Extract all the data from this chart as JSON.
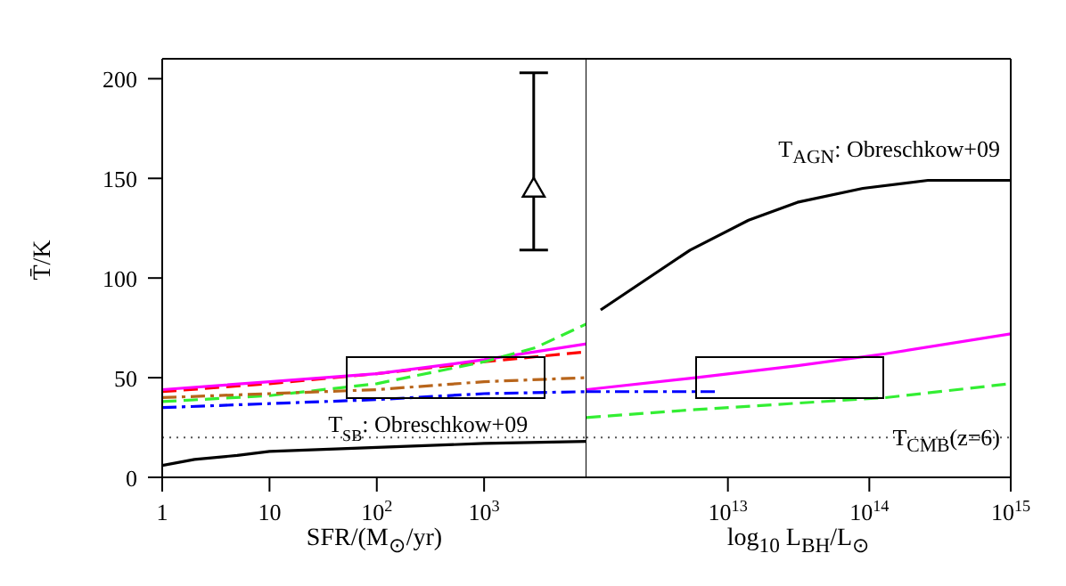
{
  "chart_data": [
    {
      "type": "line",
      "ylabel": "T̄/K",
      "xlabel": "SFR/(M$_{⊙}$/yr)",
      "log": "x",
      "xlim": [
        1,
        9000
      ],
      "xticks": [
        1,
        10,
        {
          "value": 100,
          "label": "10$^{2}$"
        },
        {
          "value": 1000,
          "label": "10$^{3}$"
        }
      ],
      "ylim": [
        0,
        210
      ],
      "yticks": [
        0,
        50,
        100,
        150,
        200
      ],
      "ref_lines": [
        {
          "axis": "y",
          "value": 20,
          "line_style": "dotted",
          "color": "#555555"
        }
      ],
      "annotations": [
        {
          "text": "T$_{SB}$: Obreschkow+09",
          "x": 300,
          "y": 23
        }
      ],
      "series": [
        {
          "color": "#000000",
          "x": [
            1,
            2,
            5,
            10,
            100,
            1000,
            9000
          ],
          "values": [
            6,
            9,
            11,
            13,
            15,
            17,
            18
          ],
          "line_style": "solid",
          "marker": "none"
        },
        {
          "color": "#ff0000",
          "x": [
            1,
            10,
            100,
            1000,
            9000
          ],
          "values": [
            43,
            47,
            52,
            58,
            63
          ],
          "line_style": "dashed",
          "marker": "none"
        },
        {
          "color": "#ff00ff",
          "x": [
            1,
            10,
            100,
            1000,
            9000
          ],
          "values": [
            44,
            48,
            52,
            59,
            67
          ],
          "line_style": "solid",
          "marker": "none"
        },
        {
          "color": "#33ee33",
          "x": [
            1,
            10,
            100,
            1000,
            3000,
            9000
          ],
          "values": [
            38,
            41,
            47,
            58,
            65,
            77
          ],
          "line_style": "dashed",
          "marker": "none"
        },
        {
          "color": "#b8651b",
          "x": [
            1,
            10,
            100,
            1000,
            9000
          ],
          "values": [
            40,
            42,
            44,
            48,
            50
          ],
          "line_style": "dashdot",
          "marker": "none"
        },
        {
          "color": "#0000ff",
          "x": [
            1,
            10,
            100,
            1000,
            9000
          ],
          "values": [
            35,
            37,
            39,
            42,
            43
          ],
          "line_style": "dashdot",
          "marker": "none"
        },
        {
          "type": "scatter",
          "color": "#000000",
          "x": [
            2900
          ],
          "values": [
            144
          ],
          "errors": [
            [
              114,
              203
            ]
          ],
          "marker": "triangle"
        }
      ]
    },
    {
      "type": "line",
      "xlabel": "log$_{10}$ L$_{BH}$/L$_{⊙}$",
      "log": "x",
      "xlim": [
        1000000000000.0,
        1000000000000000.0
      ],
      "xticks": [
        {
          "value": 10000000000000.0,
          "label": "10$^{13}$"
        },
        {
          "value": 100000000000000.0,
          "label": "10$^{14}$"
        },
        {
          "value": 1000000000000000.0,
          "label": "10$^{15}$"
        }
      ],
      "ylim": [
        0,
        210
      ],
      "yticks": [
        0,
        50,
        100,
        150,
        200
      ],
      "tick_labels": "x",
      "ref_lines": [
        {
          "axis": "y",
          "value": 20,
          "line_style": "dotted",
          "color": "#555555"
        }
      ],
      "annotations": [
        "T$_{AGN}$: Obreschkow+09",
        "T$_{CMB}$(z=6)"
      ],
      "series": [
        {
          "color": "#000000",
          "x": [
            1260000000000.0,
            5400000000000.0,
            14000000000000.0,
            31000000000000.0,
            90000000000000.0,
            260000000000000.0,
            1000000000000000.0
          ],
          "values": [
            84,
            114,
            129,
            138,
            145,
            149,
            149
          ],
          "line_style": "solid",
          "marker": "none"
        },
        {
          "color": "#ff00ff",
          "x": [
            1000000000000.0,
            5900000000000.0,
            31000000000000.0,
            130000000000000.0,
            1000000000000000.0
          ],
          "values": [
            44,
            50,
            56,
            62,
            72
          ],
          "line_style": "solid",
          "marker": "none"
        },
        {
          "color": "#33ee33",
          "x": [
            1000000000000.0,
            5900000000000.0,
            130000000000000.0,
            1000000000000000.0
          ],
          "values": [
            30,
            34,
            40,
            47
          ],
          "line_style": "dashed",
          "marker": "none"
        },
        {
          "color": "#0000ff",
          "x": [
            1000000000000.0,
            8700000000000.0
          ],
          "values": [
            43,
            43
          ],
          "line_style": "dashdot",
          "marker": "none"
        }
      ]
    }
  ]
}
